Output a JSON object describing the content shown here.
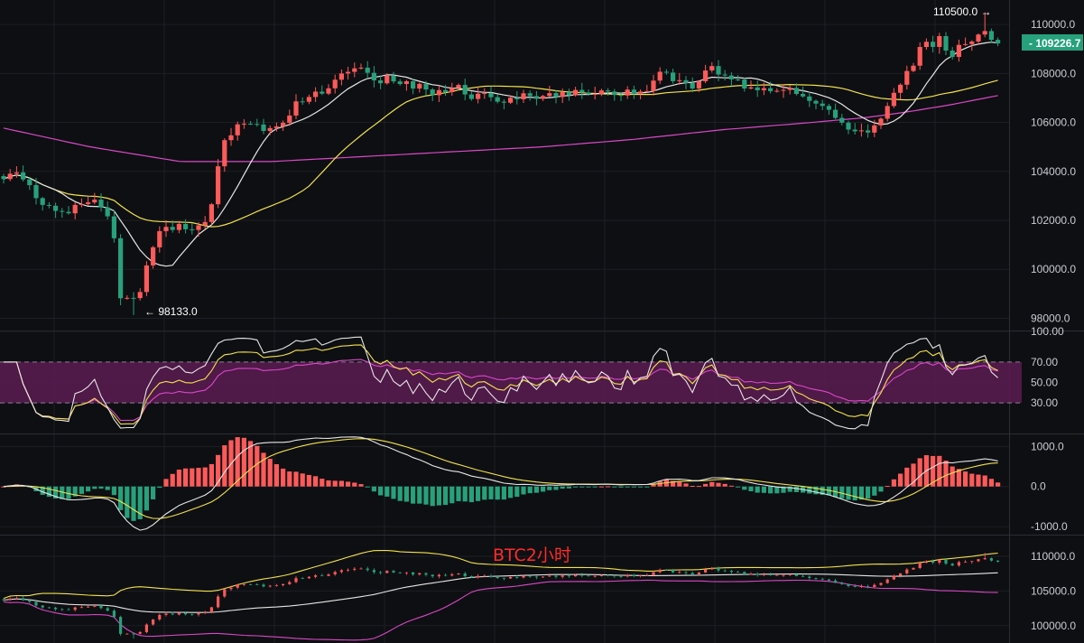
{
  "title": "BTC2小时",
  "colors": {
    "background": "#0e0f12",
    "grid": "#1c1f25",
    "up": "#ff5a5a",
    "down": "#26a17b",
    "ma_short": "#e6e6e6",
    "ma_mid": "#f3e24b",
    "ma_long": "#d948c8",
    "rsi_band": "#5a1b52",
    "last_price_bg": "#26a17b"
  },
  "price_panel": {
    "ticks": [
      "110000.0",
      "108000.0",
      "106000.0",
      "104000.0",
      "102000.0",
      "100000.0",
      "98000.0"
    ],
    "tick_values": [
      110000,
      108000,
      106000,
      104000,
      102000,
      100000,
      98000
    ],
    "ylim": [
      97500,
      111000
    ],
    "high_label": "110500.0",
    "high_arrow": "→",
    "low_label": "98133.0",
    "low_arrow": "←",
    "last_price": "109226.7"
  },
  "rsi_panel": {
    "ticks": [
      "100.00",
      "70.00",
      "50.00",
      "30.00"
    ],
    "tick_values": [
      100,
      70,
      50,
      30
    ],
    "ylim": [
      0,
      100
    ],
    "band": [
      30,
      70
    ]
  },
  "macd_panel": {
    "ticks": [
      "1000.0",
      "0.0",
      "-1000.0"
    ],
    "tick_values": [
      1000,
      0,
      -1000
    ],
    "ylim": [
      -1200,
      1300
    ]
  },
  "mini_panel": {
    "ticks": [
      "110000.0",
      "105000.0",
      "100000.0"
    ],
    "tick_values": [
      110000,
      105000,
      100000
    ],
    "ylim": [
      97500,
      113000
    ]
  },
  "chart_data": {
    "type": "candlestick",
    "close_keypoints": [
      [
        0,
        103800
      ],
      [
        15,
        103900
      ],
      [
        25,
        103700
      ],
      [
        35,
        103200
      ],
      [
        45,
        102600
      ],
      [
        55,
        102400
      ],
      [
        65,
        102100
      ],
      [
        75,
        102300
      ],
      [
        85,
        102500
      ],
      [
        95,
        102700
      ],
      [
        105,
        102800
      ],
      [
        118,
        102400
      ],
      [
        126,
        101300
      ],
      [
        133,
        99000
      ],
      [
        140,
        98700
      ],
      [
        150,
        98900
      ],
      [
        158,
        99300
      ],
      [
        165,
        100600
      ],
      [
        175,
        101400
      ],
      [
        185,
        101700
      ],
      [
        195,
        101800
      ],
      [
        210,
        101600
      ],
      [
        220,
        101900
      ],
      [
        228,
        102000
      ],
      [
        235,
        102800
      ],
      [
        242,
        104300
      ],
      [
        250,
        105300
      ],
      [
        262,
        105900
      ],
      [
        275,
        105900
      ],
      [
        290,
        105800
      ],
      [
        305,
        105700
      ],
      [
        318,
        106300
      ],
      [
        330,
        106800
      ],
      [
        345,
        107000
      ],
      [
        360,
        107300
      ],
      [
        372,
        107600
      ],
      [
        382,
        108000
      ],
      [
        392,
        108300
      ],
      [
        402,
        108100
      ],
      [
        418,
        107800
      ],
      [
        435,
        107700
      ],
      [
        450,
        107600
      ],
      [
        465,
        107500
      ],
      [
        480,
        107200
      ],
      [
        495,
        107300
      ],
      [
        510,
        107400
      ],
      [
        525,
        107000
      ],
      [
        540,
        107100
      ],
      [
        555,
        106900
      ],
      [
        570,
        107000
      ],
      [
        585,
        107100
      ],
      [
        600,
        107000
      ],
      [
        615,
        107200
      ],
      [
        630,
        107200
      ],
      [
        645,
        107300
      ],
      [
        660,
        107300
      ],
      [
        675,
        107100
      ],
      [
        690,
        107200
      ],
      [
        705,
        107200
      ],
      [
        720,
        107300
      ],
      [
        735,
        108200
      ],
      [
        748,
        107800
      ],
      [
        760,
        107600
      ],
      [
        772,
        107400
      ],
      [
        782,
        108000
      ],
      [
        792,
        108200
      ],
      [
        805,
        107900
      ],
      [
        815,
        107600
      ],
      [
        830,
        107400
      ],
      [
        845,
        107400
      ],
      [
        860,
        107300
      ],
      [
        875,
        107400
      ],
      [
        890,
        107100
      ],
      [
        905,
        106800
      ],
      [
        918,
        106500
      ],
      [
        930,
        106100
      ],
      [
        940,
        105700
      ],
      [
        950,
        105600
      ],
      [
        960,
        105700
      ],
      [
        975,
        106000
      ],
      [
        990,
        107000
      ],
      [
        1000,
        107700
      ],
      [
        1012,
        108500
      ],
      [
        1022,
        109300
      ],
      [
        1032,
        109200
      ],
      [
        1042,
        109400
      ],
      [
        1052,
        108800
      ],
      [
        1062,
        109000
      ],
      [
        1072,
        109300
      ],
      [
        1082,
        109700
      ],
      [
        1092,
        109600
      ],
      [
        1100,
        109300
      ],
      [
        1106,
        109700
      ]
    ],
    "ma_long_keypoints": [
      [
        0,
        105800
      ],
      [
        100,
        105000
      ],
      [
        200,
        104400
      ],
      [
        300,
        104400
      ],
      [
        400,
        104600
      ],
      [
        500,
        104800
      ],
      [
        600,
        105000
      ],
      [
        700,
        105300
      ],
      [
        800,
        105700
      ],
      [
        900,
        106000
      ],
      [
        960,
        106200
      ],
      [
        1000,
        106400
      ],
      [
        1050,
        106700
      ],
      [
        1106,
        107100
      ]
    ],
    "ma_short_period": 9,
    "ma_mid_period": 30,
    "rsi_period": 14,
    "macd": {
      "fast": 12,
      "slow": 26,
      "signal": 9
    }
  }
}
